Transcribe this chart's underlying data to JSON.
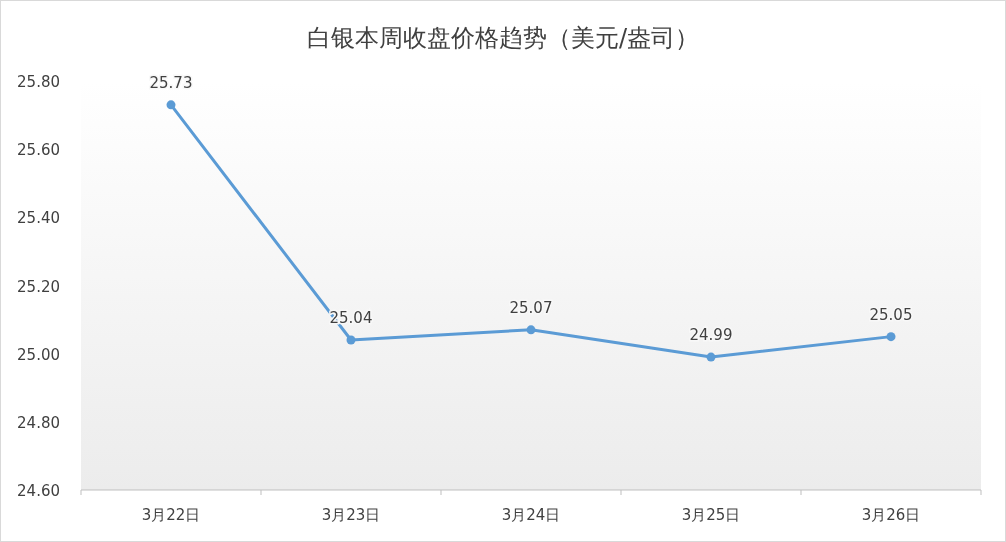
{
  "chart_data": {
    "type": "line",
    "title": "白银本周收盘价格趋势（美元/盎司）",
    "categories": [
      "3月22日",
      "3月23日",
      "3月24日",
      "3月25日",
      "3月26日"
    ],
    "series": [
      {
        "color": "#5b9bd5",
        "values": [
          25.73,
          25.04,
          25.07,
          24.99,
          25.05
        ]
      }
    ],
    "ylim": [
      24.6,
      25.8
    ],
    "yticks": [
      {
        "value": 24.6,
        "label": "24.60"
      },
      {
        "value": 24.8,
        "label": "24.80"
      },
      {
        "value": 25.0,
        "label": "25.00"
      },
      {
        "value": 25.2,
        "label": "25.20"
      },
      {
        "value": 25.4,
        "label": "25.40"
      },
      {
        "value": 25.6,
        "label": "25.60"
      },
      {
        "value": 25.8,
        "label": "25.80"
      }
    ],
    "data_labels": true,
    "marker": "circle",
    "line_style": "solid"
  }
}
